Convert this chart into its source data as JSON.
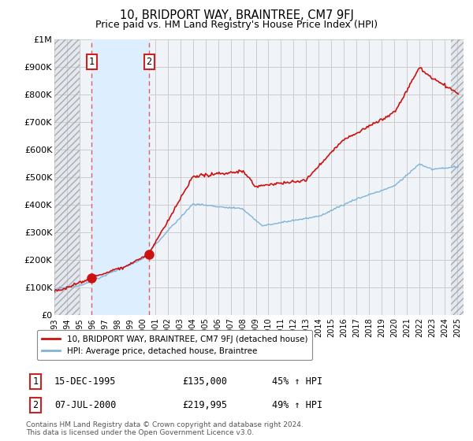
{
  "title": "10, BRIDPORT WAY, BRAINTREE, CM7 9FJ",
  "subtitle": "Price paid vs. HM Land Registry's House Price Index (HPI)",
  "ylim": [
    0,
    1000000
  ],
  "yticks": [
    0,
    100000,
    200000,
    300000,
    400000,
    500000,
    600000,
    700000,
    800000,
    900000,
    1000000
  ],
  "ytick_labels": [
    "£0",
    "£100K",
    "£200K",
    "£300K",
    "£400K",
    "£500K",
    "£600K",
    "£700K",
    "£800K",
    "£900K",
    "£1M"
  ],
  "xlim_start": 1993.0,
  "xlim_end": 2025.5,
  "xticks": [
    1993,
    1994,
    1995,
    1996,
    1997,
    1998,
    1999,
    2000,
    2001,
    2002,
    2003,
    2004,
    2005,
    2006,
    2007,
    2008,
    2009,
    2010,
    2011,
    2012,
    2013,
    2014,
    2015,
    2016,
    2017,
    2018,
    2019,
    2020,
    2021,
    2022,
    2023,
    2024,
    2025
  ],
  "hpi_color": "#7fb3d9",
  "price_color": "#cc1111",
  "marker_color": "#cc1111",
  "annotation_box_edgecolor": "#cc2222",
  "vline_color": "#e06060",
  "hatch_left_start": 1993.0,
  "hatch_left_end": 1995.0,
  "hatch_right_start": 2024.5,
  "hatch_right_end": 2025.5,
  "shade_between_start": 1995.96,
  "shade_between_end": 2000.52,
  "shade_color": "#ddeeff",
  "hatch_bg_color": "#e4e8f0",
  "legend_label_price": "10, BRIDPORT WAY, BRAINTREE, CM7 9FJ (detached house)",
  "legend_label_hpi": "HPI: Average price, detached house, Braintree",
  "transaction1_x": 1995.96,
  "transaction1_y": 135000,
  "transaction1_label": "1",
  "transaction1_date": "15-DEC-1995",
  "transaction1_price": "£135,000",
  "transaction1_hpi": "45% ↑ HPI",
  "transaction2_x": 2000.52,
  "transaction2_y": 219995,
  "transaction2_label": "2",
  "transaction2_date": "07-JUL-2000",
  "transaction2_price": "£219,995",
  "transaction2_hpi": "49% ↑ HPI",
  "footnote1": "Contains HM Land Registry data © Crown copyright and database right 2024.",
  "footnote2": "This data is licensed under the Open Government Licence v3.0.",
  "background_color": "#ffffff",
  "plot_bg_color": "#f0f4f8",
  "grid_color": "#cccccc",
  "title_fontsize": 10.5,
  "subtitle_fontsize": 9
}
